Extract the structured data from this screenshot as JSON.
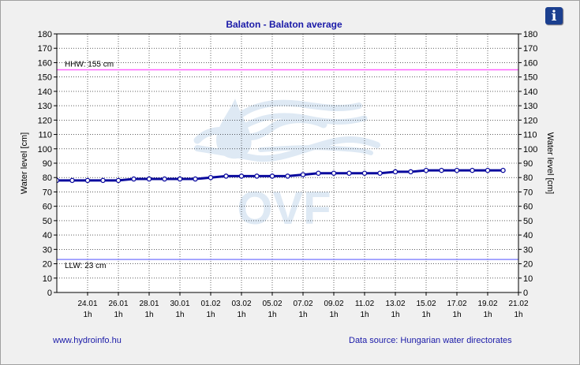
{
  "chart_data": {
    "type": "line",
    "title": "Balaton - Balaton average",
    "ylabel_left": "Water level [cm]",
    "ylabel_right": "Water level [cm]",
    "ylim": [
      0,
      180
    ],
    "yticks": [
      0,
      10,
      20,
      30,
      40,
      50,
      60,
      70,
      80,
      90,
      100,
      110,
      120,
      130,
      140,
      150,
      160,
      170,
      180
    ],
    "xticks": [
      {
        "date": "24.01",
        "hour": "1h"
      },
      {
        "date": "26.01",
        "hour": "1h"
      },
      {
        "date": "28.01",
        "hour": "1h"
      },
      {
        "date": "30.01",
        "hour": "1h"
      },
      {
        "date": "01.02",
        "hour": "1h"
      },
      {
        "date": "03.02",
        "hour": "1h"
      },
      {
        "date": "05.02",
        "hour": "1h"
      },
      {
        "date": "07.02",
        "hour": "1h"
      },
      {
        "date": "09.02",
        "hour": "1h"
      },
      {
        "date": "11.02",
        "hour": "1h"
      },
      {
        "date": "13.02",
        "hour": "1h"
      },
      {
        "date": "15.02",
        "hour": "1h"
      },
      {
        "date": "17.02",
        "hour": "1h"
      },
      {
        "date": "19.02",
        "hour": "1h"
      },
      {
        "date": "21.02",
        "hour": "1h"
      }
    ],
    "x_start": "22.01 1h",
    "x_end": "21.02 1h",
    "series": [
      {
        "x": [
          "22.01",
          "23.01",
          "24.01",
          "25.01",
          "26.01",
          "27.01",
          "28.01",
          "29.01",
          "30.01",
          "31.01",
          "01.02",
          "02.02",
          "03.02",
          "04.02",
          "05.02",
          "06.02",
          "07.02",
          "08.02",
          "09.02",
          "10.02",
          "11.02",
          "12.02",
          "13.02",
          "14.02",
          "15.02",
          "16.02",
          "17.02",
          "18.02",
          "19.02",
          "20.02"
        ],
        "values": [
          78,
          78,
          78,
          78,
          78,
          79,
          79,
          79,
          79,
          79,
          80,
          81,
          81,
          81,
          81,
          81,
          82,
          83,
          83,
          83,
          83,
          83,
          84,
          84,
          85,
          85,
          85,
          85,
          85,
          85
        ],
        "color": "#0a0a9e"
      }
    ],
    "reference_lines": [
      {
        "label": "HHW: 155 cm",
        "value": 155,
        "color": "#ff66ff"
      },
      {
        "label": "LLW: 23 cm",
        "value": 23,
        "color": "#8c8cff"
      }
    ],
    "grid": true,
    "watermark": "OVF"
  },
  "footer": {
    "website": "www.hydroinfo.hu",
    "source": "Data source: Hungarian water directorates"
  },
  "info_button": {
    "label": "i"
  }
}
